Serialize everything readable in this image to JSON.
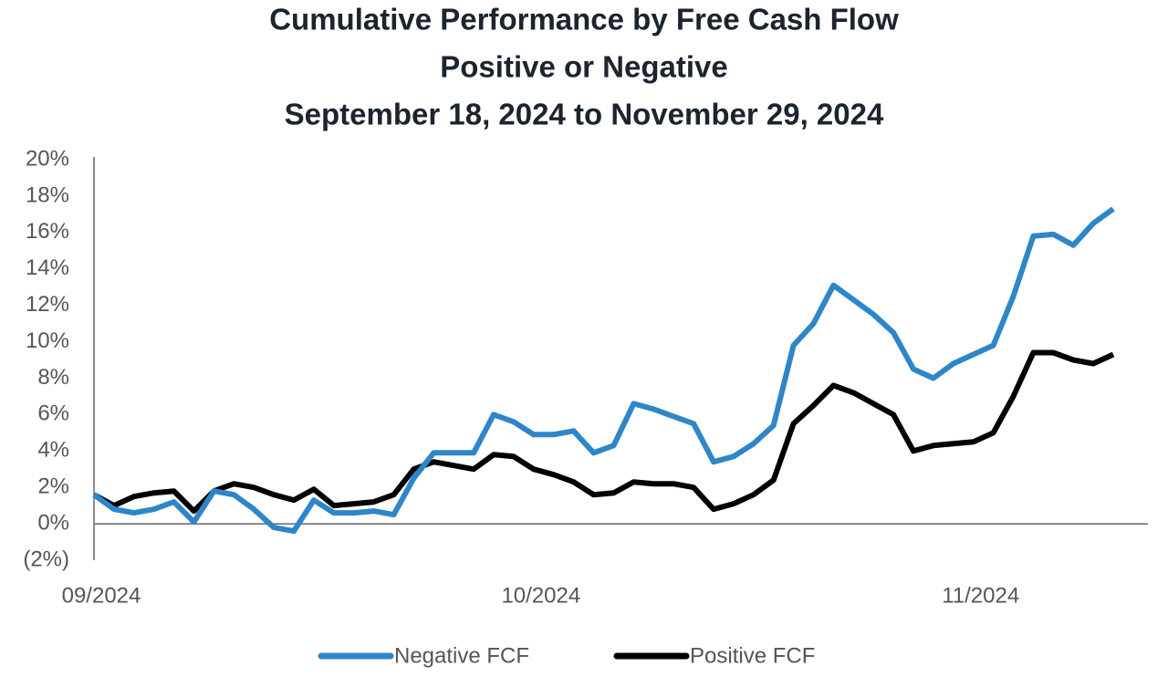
{
  "chart_data": {
    "type": "line",
    "title": [
      "Cumulative Performance by Free Cash Flow",
      "Positive or Negative",
      "September 18, 2024 to November 29, 2024"
    ],
    "categories": [
      "09/2024",
      null,
      null,
      null,
      null,
      null,
      null,
      null,
      null,
      null,
      null,
      null,
      null,
      null,
      null,
      null,
      null,
      null,
      null,
      null,
      null,
      null,
      "10/2024",
      null,
      null,
      null,
      null,
      null,
      null,
      null,
      null,
      null,
      null,
      null,
      null,
      null,
      null,
      null,
      null,
      null,
      null,
      null,
      null,
      null,
      "11/2024",
      null,
      null,
      null,
      null,
      null,
      null,
      null
    ],
    "series": [
      {
        "name": "Negative FCF",
        "color": "#2e86c8",
        "values": [
          1.6,
          0.8,
          0.6,
          0.8,
          1.2,
          0.1,
          1.8,
          1.6,
          0.8,
          -0.2,
          -0.4,
          1.3,
          0.6,
          0.6,
          0.7,
          0.5,
          2.5,
          3.9,
          3.9,
          3.9,
          6.0,
          5.6,
          4.9,
          4.9,
          5.1,
          3.9,
          4.3,
          6.6,
          6.3,
          5.9,
          5.5,
          3.4,
          3.7,
          4.4,
          5.4,
          9.8,
          11.0,
          13.1,
          12.3,
          11.5,
          10.5,
          8.5,
          8.0,
          8.8,
          9.3,
          9.8,
          12.5,
          15.8,
          15.9,
          15.3,
          16.5,
          17.3
        ]
      },
      {
        "name": "Positive FCF",
        "color": "#000000",
        "values": [
          1.6,
          1.0,
          1.5,
          1.7,
          1.8,
          0.7,
          1.8,
          2.2,
          2.0,
          1.6,
          1.3,
          1.9,
          1.0,
          1.1,
          1.2,
          1.6,
          3.0,
          3.4,
          3.2,
          3.0,
          3.8,
          3.7,
          3.0,
          2.7,
          2.3,
          1.6,
          1.7,
          2.3,
          2.2,
          2.2,
          2.0,
          0.8,
          1.1,
          1.6,
          2.4,
          5.5,
          6.5,
          7.6,
          7.2,
          6.6,
          6.0,
          4.0,
          4.3,
          4.4,
          4.5,
          5.0,
          7.0,
          9.4,
          9.4,
          9.0,
          8.8,
          9.3
        ]
      }
    ],
    "ylim": [
      -2,
      20
    ],
    "yticks": [
      {
        "value": -2,
        "label": "(2%)"
      },
      {
        "value": 0,
        "label": "0%"
      },
      {
        "value": 2,
        "label": "2%"
      },
      {
        "value": 4,
        "label": "4%"
      },
      {
        "value": 6,
        "label": "6%"
      },
      {
        "value": 8,
        "label": "8%"
      },
      {
        "value": 10,
        "label": "10%"
      },
      {
        "value": 12,
        "label": "12%"
      },
      {
        "value": 14,
        "label": "14%"
      },
      {
        "value": 16,
        "label": "16%"
      },
      {
        "value": 18,
        "label": "18%"
      },
      {
        "value": 20,
        "label": "20%"
      }
    ],
    "grid": false,
    "legend": "bottom"
  }
}
